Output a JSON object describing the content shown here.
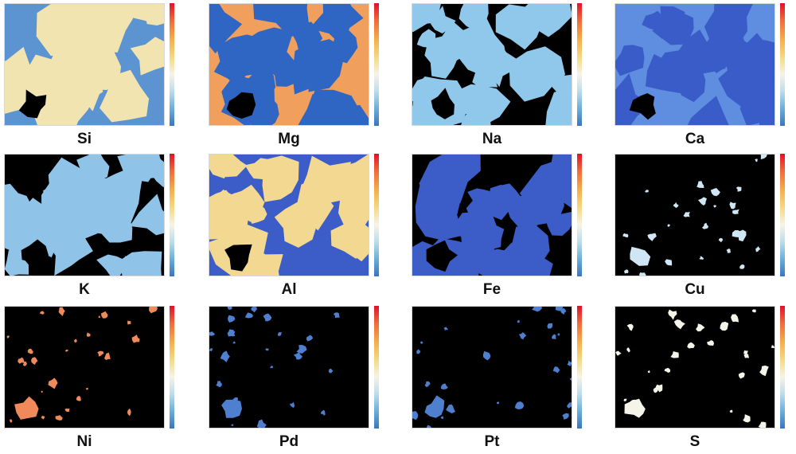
{
  "colorscale": [
    "#3a74c0",
    "#6aaed8",
    "#bcdcec",
    "#f7f3e6",
    "#f4dc88",
    "#f6b04a",
    "#f06a3a",
    "#e0102a"
  ],
  "panels": [
    {
      "label": "Si",
      "background": "#5b94d0",
      "pattern": "#f2e4b0",
      "pores": "#000000",
      "coverage": 0.45
    },
    {
      "label": "Mg",
      "background": "#f0a05c",
      "pattern": "#2f66c4",
      "pores": "#000000",
      "coverage": 0.5
    },
    {
      "label": "Na",
      "background": "#000000",
      "pattern": "#8fc8ea",
      "pores": "#000000",
      "coverage": 0.55
    },
    {
      "label": "Ca",
      "background": "#5f8ee0",
      "pattern": "#3a5cc8",
      "pores": "#000000",
      "coverage": 0.45
    },
    {
      "label": "K",
      "background": "#000000",
      "pattern": "#8fc4e8",
      "pores": "#000000",
      "coverage": 0.55
    },
    {
      "label": "Al",
      "background": "#3c5cc8",
      "pattern": "#f2d890",
      "pores": "#000000",
      "coverage": 0.5
    },
    {
      "label": "Fe",
      "background": "#000000",
      "pattern": "#3c5cc8",
      "pores": "#000000",
      "coverage": 0.5
    },
    {
      "label": "Cu",
      "background": "#000000",
      "pattern": "#cfe6f4",
      "pores": "#000000",
      "coverage": 0.08
    },
    {
      "label": "Ni",
      "background": "#000000",
      "pattern": "#f08a5a",
      "pores": "#000000",
      "coverage": 0.06
    },
    {
      "label": "Pd",
      "background": "#000000",
      "pattern": "#4f80d0",
      "pores": "#000000",
      "coverage": 0.04
    },
    {
      "label": "Pt",
      "background": "#000000",
      "pattern": "#4f80d0",
      "pores": "#000000",
      "coverage": 0.04
    },
    {
      "label": "S",
      "background": "#000000",
      "pattern": "#f4f4e8",
      "pores": "#000000",
      "coverage": 0.06
    }
  ]
}
